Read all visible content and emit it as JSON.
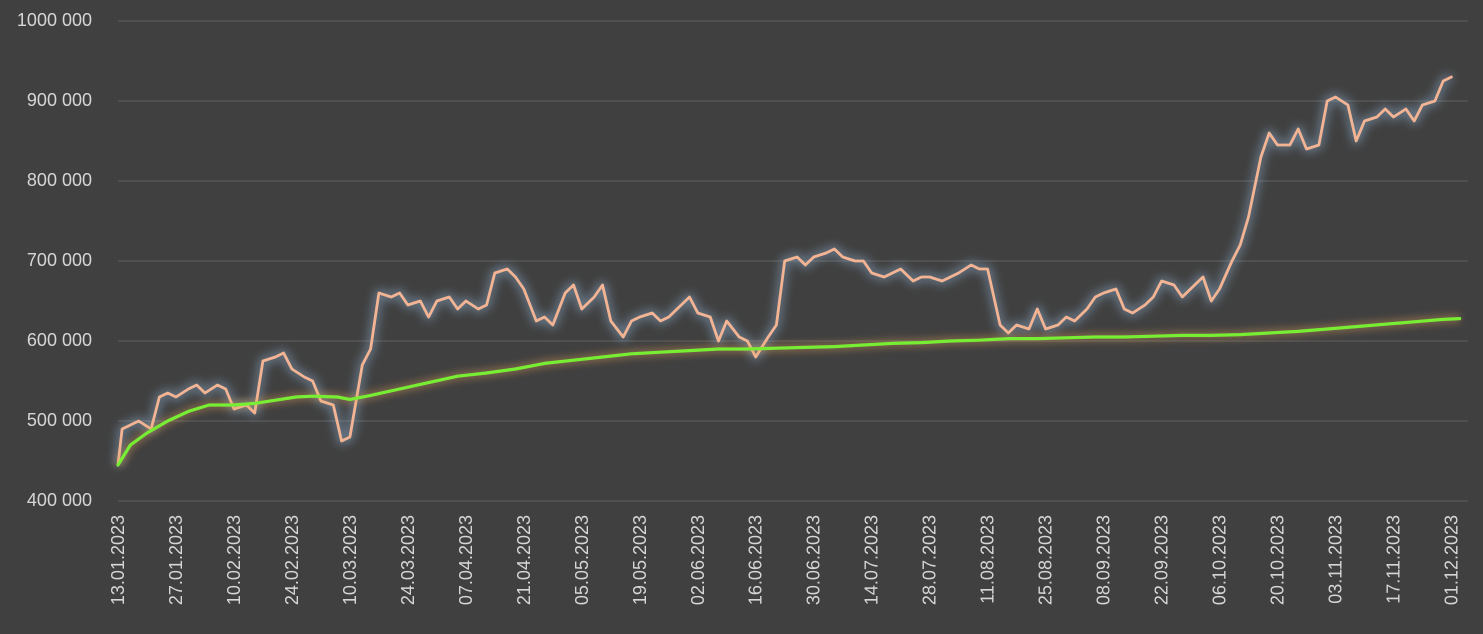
{
  "chart_data": {
    "type": "line",
    "title": "",
    "xlabel": "",
    "ylabel": "",
    "ylim": [
      400000,
      1000000
    ],
    "yticks": [
      "400 000",
      "500 000",
      "600 000",
      "700 000",
      "800 000",
      "900 000",
      "1000 000"
    ],
    "ytick_values": [
      400000,
      500000,
      600000,
      700000,
      800000,
      900000,
      1000000
    ],
    "xticks": [
      "13.01.2023",
      "27.01.2023",
      "10.02.2023",
      "24.02.2023",
      "10.03.2023",
      "24.03.2023",
      "07.04.2023",
      "21.04.2023",
      "05.05.2023",
      "19.05.2023",
      "02.06.2023",
      "16.06.2023",
      "30.06.2023",
      "14.07.2023",
      "28.07.2023",
      "11.08.2023",
      "25.08.2023",
      "08.09.2023",
      "22.09.2023",
      "06.10.2023",
      "20.10.2023",
      "03.11.2023",
      "17.11.2023",
      "01.12.2023"
    ],
    "x_range": [
      "13.01.2023",
      "05.12.2023"
    ],
    "grid": true,
    "legend": "none",
    "series": [
      {
        "color": "#f3b494",
        "glow": "#a8d4ff",
        "points": [
          [
            "13.01.2023",
            445000
          ],
          [
            "14.01.2023",
            490000
          ],
          [
            "16.01.2023",
            495000
          ],
          [
            "18.01.2023",
            500000
          ],
          [
            "21.01.2023",
            490000
          ],
          [
            "23.01.2023",
            530000
          ],
          [
            "25.01.2023",
            535000
          ],
          [
            "27.01.2023",
            530000
          ],
          [
            "30.01.2023",
            540000
          ],
          [
            "01.02.2023",
            545000
          ],
          [
            "03.02.2023",
            535000
          ],
          [
            "06.02.2023",
            545000
          ],
          [
            "08.02.2023",
            540000
          ],
          [
            "10.02.2023",
            515000
          ],
          [
            "13.02.2023",
            520000
          ],
          [
            "15.02.2023",
            510000
          ],
          [
            "17.02.2023",
            575000
          ],
          [
            "20.02.2023",
            580000
          ],
          [
            "22.02.2023",
            585000
          ],
          [
            "24.02.2023",
            565000
          ],
          [
            "27.02.2023",
            555000
          ],
          [
            "01.03.2023",
            550000
          ],
          [
            "03.03.2023",
            525000
          ],
          [
            "06.03.2023",
            520000
          ],
          [
            "08.03.2023",
            475000
          ],
          [
            "10.03.2023",
            480000
          ],
          [
            "13.03.2023",
            570000
          ],
          [
            "15.03.2023",
            590000
          ],
          [
            "17.03.2023",
            660000
          ],
          [
            "20.03.2023",
            655000
          ],
          [
            "22.03.2023",
            660000
          ],
          [
            "24.03.2023",
            645000
          ],
          [
            "27.03.2023",
            650000
          ],
          [
            "29.03.2023",
            630000
          ],
          [
            "31.03.2023",
            650000
          ],
          [
            "03.04.2023",
            655000
          ],
          [
            "05.04.2023",
            640000
          ],
          [
            "07.04.2023",
            650000
          ],
          [
            "10.04.2023",
            640000
          ],
          [
            "12.04.2023",
            645000
          ],
          [
            "14.04.2023",
            685000
          ],
          [
            "17.04.2023",
            690000
          ],
          [
            "19.04.2023",
            680000
          ],
          [
            "21.04.2023",
            665000
          ],
          [
            "24.04.2023",
            625000
          ],
          [
            "26.04.2023",
            630000
          ],
          [
            "28.04.2023",
            620000
          ],
          [
            "01.05.2023",
            660000
          ],
          [
            "03.05.2023",
            670000
          ],
          [
            "05.05.2023",
            640000
          ],
          [
            "08.05.2023",
            655000
          ],
          [
            "10.05.2023",
            670000
          ],
          [
            "12.05.2023",
            625000
          ],
          [
            "15.05.2023",
            605000
          ],
          [
            "17.05.2023",
            625000
          ],
          [
            "19.05.2023",
            630000
          ],
          [
            "22.05.2023",
            635000
          ],
          [
            "24.05.2023",
            625000
          ],
          [
            "26.05.2023",
            630000
          ],
          [
            "29.05.2023",
            645000
          ],
          [
            "31.05.2023",
            655000
          ],
          [
            "02.06.2023",
            635000
          ],
          [
            "05.06.2023",
            630000
          ],
          [
            "07.06.2023",
            600000
          ],
          [
            "09.06.2023",
            625000
          ],
          [
            "12.06.2023",
            605000
          ],
          [
            "14.06.2023",
            600000
          ],
          [
            "16.06.2023",
            580000
          ],
          [
            "19.06.2023",
            605000
          ],
          [
            "21.06.2023",
            620000
          ],
          [
            "23.06.2023",
            700000
          ],
          [
            "26.06.2023",
            705000
          ],
          [
            "28.06.2023",
            695000
          ],
          [
            "30.06.2023",
            705000
          ],
          [
            "03.07.2023",
            710000
          ],
          [
            "05.07.2023",
            715000
          ],
          [
            "07.07.2023",
            705000
          ],
          [
            "10.07.2023",
            700000
          ],
          [
            "12.07.2023",
            700000
          ],
          [
            "14.07.2023",
            685000
          ],
          [
            "17.07.2023",
            680000
          ],
          [
            "19.07.2023",
            685000
          ],
          [
            "21.07.2023",
            690000
          ],
          [
            "24.07.2023",
            675000
          ],
          [
            "26.07.2023",
            680000
          ],
          [
            "28.07.2023",
            680000
          ],
          [
            "31.07.2023",
            675000
          ],
          [
            "02.08.2023",
            680000
          ],
          [
            "04.08.2023",
            685000
          ],
          [
            "07.08.2023",
            695000
          ],
          [
            "09.08.2023",
            690000
          ],
          [
            "11.08.2023",
            690000
          ],
          [
            "14.08.2023",
            620000
          ],
          [
            "16.08.2023",
            610000
          ],
          [
            "18.08.2023",
            620000
          ],
          [
            "21.08.2023",
            615000
          ],
          [
            "23.08.2023",
            640000
          ],
          [
            "25.08.2023",
            615000
          ],
          [
            "28.08.2023",
            620000
          ],
          [
            "30.08.2023",
            630000
          ],
          [
            "01.09.2023",
            625000
          ],
          [
            "04.09.2023",
            640000
          ],
          [
            "06.09.2023",
            655000
          ],
          [
            "08.09.2023",
            660000
          ],
          [
            "11.09.2023",
            665000
          ],
          [
            "13.09.2023",
            640000
          ],
          [
            "15.09.2023",
            635000
          ],
          [
            "18.09.2023",
            645000
          ],
          [
            "20.09.2023",
            655000
          ],
          [
            "22.09.2023",
            675000
          ],
          [
            "25.09.2023",
            670000
          ],
          [
            "27.09.2023",
            655000
          ],
          [
            "29.09.2023",
            665000
          ],
          [
            "02.10.2023",
            680000
          ],
          [
            "04.10.2023",
            650000
          ],
          [
            "06.10.2023",
            665000
          ],
          [
            "09.10.2023",
            700000
          ],
          [
            "11.10.2023",
            720000
          ],
          [
            "13.10.2023",
            755000
          ],
          [
            "16.10.2023",
            830000
          ],
          [
            "18.10.2023",
            860000
          ],
          [
            "20.10.2023",
            845000
          ],
          [
            "23.10.2023",
            845000
          ],
          [
            "25.10.2023",
            865000
          ],
          [
            "27.10.2023",
            840000
          ],
          [
            "30.10.2023",
            845000
          ],
          [
            "01.11.2023",
            900000
          ],
          [
            "03.11.2023",
            905000
          ],
          [
            "06.11.2023",
            895000
          ],
          [
            "08.11.2023",
            850000
          ],
          [
            "10.11.2023",
            875000
          ],
          [
            "13.11.2023",
            880000
          ],
          [
            "15.11.2023",
            890000
          ],
          [
            "17.11.2023",
            880000
          ],
          [
            "20.11.2023",
            890000
          ],
          [
            "22.11.2023",
            875000
          ],
          [
            "24.11.2023",
            895000
          ],
          [
            "27.11.2023",
            900000
          ],
          [
            "29.11.2023",
            925000
          ],
          [
            "01.12.2023",
            930000
          ]
        ]
      },
      {
        "color": "#77ee33",
        "glow": "#e8a45a",
        "points": [
          [
            "13.01.2023",
            445000
          ],
          [
            "16.01.2023",
            470000
          ],
          [
            "20.01.2023",
            485000
          ],
          [
            "25.01.2023",
            500000
          ],
          [
            "30.01.2023",
            512000
          ],
          [
            "04.02.2023",
            520000
          ],
          [
            "10.02.2023",
            520000
          ],
          [
            "15.02.2023",
            522000
          ],
          [
            "20.02.2023",
            526000
          ],
          [
            "25.02.2023",
            530000
          ],
          [
            "01.03.2023",
            531000
          ],
          [
            "07.03.2023",
            530000
          ],
          [
            "10.03.2023",
            527000
          ],
          [
            "15.03.2023",
            532000
          ],
          [
            "22.03.2023",
            540000
          ],
          [
            "29.03.2023",
            548000
          ],
          [
            "05.04.2023",
            556000
          ],
          [
            "12.04.2023",
            560000
          ],
          [
            "19.04.2023",
            565000
          ],
          [
            "26.04.2023",
            572000
          ],
          [
            "03.05.2023",
            576000
          ],
          [
            "10.05.2023",
            580000
          ],
          [
            "17.05.2023",
            584000
          ],
          [
            "24.05.2023",
            586000
          ],
          [
            "31.05.2023",
            588000
          ],
          [
            "07.06.2023",
            590000
          ],
          [
            "14.06.2023",
            590000
          ],
          [
            "21.06.2023",
            591000
          ],
          [
            "28.06.2023",
            592000
          ],
          [
            "05.07.2023",
            593000
          ],
          [
            "12.07.2023",
            595000
          ],
          [
            "19.07.2023",
            597000
          ],
          [
            "26.07.2023",
            598000
          ],
          [
            "02.08.2023",
            600000
          ],
          [
            "09.08.2023",
            601000
          ],
          [
            "16.08.2023",
            603000
          ],
          [
            "23.08.2023",
            603000
          ],
          [
            "30.08.2023",
            604000
          ],
          [
            "06.09.2023",
            605000
          ],
          [
            "13.09.2023",
            605000
          ],
          [
            "20.09.2023",
            606000
          ],
          [
            "27.09.2023",
            607000
          ],
          [
            "04.10.2023",
            607000
          ],
          [
            "11.10.2023",
            608000
          ],
          [
            "18.10.2023",
            610000
          ],
          [
            "25.10.2023",
            612000
          ],
          [
            "01.11.2023",
            615000
          ],
          [
            "08.11.2023",
            618000
          ],
          [
            "15.11.2023",
            621000
          ],
          [
            "22.11.2023",
            624000
          ],
          [
            "29.11.2023",
            627000
          ],
          [
            "03.12.2023",
            628000
          ]
        ]
      }
    ]
  }
}
